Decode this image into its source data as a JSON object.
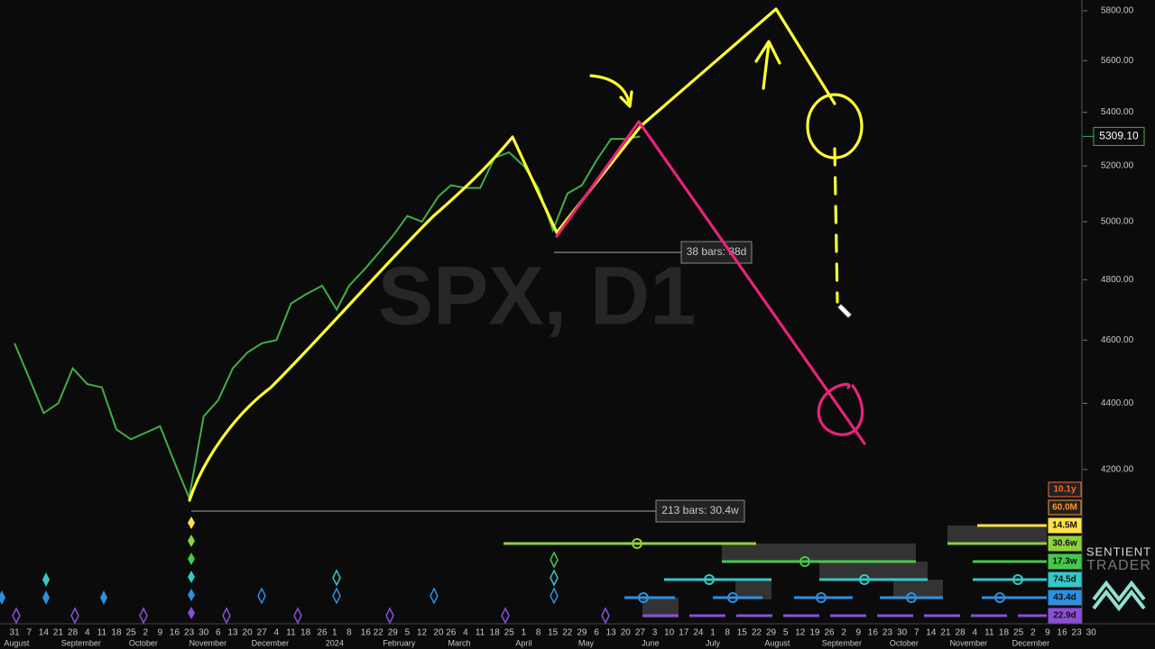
{
  "chart_data": {
    "type": "line",
    "watermark": "SPX, D1",
    "color": "#3fae49",
    "log_scale": true,
    "x": [
      "2023-07-31",
      "2023-08-07",
      "2023-08-14",
      "2023-08-21",
      "2023-08-28",
      "2023-09-04",
      "2023-09-11",
      "2023-09-18",
      "2023-09-25",
      "2023-10-02",
      "2023-10-09",
      "2023-10-16",
      "2023-10-23",
      "2023-10-30",
      "2023-11-06",
      "2023-11-13",
      "2023-11-20",
      "2023-11-27",
      "2023-12-04",
      "2023-12-11",
      "2023-12-18",
      "2023-12-26",
      "2024-01-02",
      "2024-01-08",
      "2024-01-16",
      "2024-01-22",
      "2024-01-29",
      "2024-02-05",
      "2024-02-12",
      "2024-02-20",
      "2024-02-26",
      "2024-03-04",
      "2024-03-11",
      "2024-03-18",
      "2024-03-25",
      "2024-04-01",
      "2024-04-08",
      "2024-04-15",
      "2024-04-22",
      "2024-04-29",
      "2024-05-06",
      "2024-05-13",
      "2024-05-20",
      "2024-05-27"
    ],
    "values": [
      4590,
      4480,
      4370,
      4400,
      4510,
      4460,
      4450,
      4320,
      4290,
      4310,
      4330,
      4220,
      4117,
      4360,
      4410,
      4510,
      4560,
      4590,
      4600,
      4720,
      4750,
      4780,
      4700,
      4780,
      4840,
      4890,
      4950,
      5020,
      5000,
      5090,
      5130,
      5120,
      5120,
      5230,
      5250,
      5200,
      5120,
      4970,
      5100,
      5130,
      5220,
      5300,
      5300,
      5309
    ],
    "xlim": [
      "2023-07-24",
      "2024-12-26"
    ],
    "ylim": [
      3768,
      5844
    ],
    "yticks": [
      {
        "value": 4200,
        "label": "4200.00"
      },
      {
        "value": 4400,
        "label": "4400.00"
      },
      {
        "value": 4600,
        "label": "4600.00"
      },
      {
        "value": 4800,
        "label": "4800.00"
      },
      {
        "value": 5000,
        "label": "5000.00"
      },
      {
        "value": 5200,
        "label": "5200.00"
      },
      {
        "value": 5400,
        "label": "5400.00"
      },
      {
        "value": 5600,
        "label": "5600.00"
      },
      {
        "value": 5800,
        "label": "5800.00"
      }
    ],
    "last_price": {
      "value": 5309.1,
      "label": "5309.10"
    },
    "xticks": [
      {
        "value": "2023-07-31",
        "label": "31"
      },
      {
        "value": "2023-08-07",
        "label": "7"
      },
      {
        "value": "2023-08-14",
        "label": "14"
      },
      {
        "value": "2023-08-21",
        "label": "21"
      },
      {
        "value": "2023-08-28",
        "label": "28"
      },
      {
        "value": "2023-09-04",
        "label": "4"
      },
      {
        "value": "2023-09-11",
        "label": "11"
      },
      {
        "value": "2023-09-18",
        "label": "18"
      },
      {
        "value": "2023-09-25",
        "label": "25"
      },
      {
        "value": "2023-10-02",
        "label": "2"
      },
      {
        "value": "2023-10-09",
        "label": "9"
      },
      {
        "value": "2023-10-16",
        "label": "16"
      },
      {
        "value": "2023-10-23",
        "label": "23"
      },
      {
        "value": "2023-10-30",
        "label": "30"
      },
      {
        "value": "2023-11-06",
        "label": "6"
      },
      {
        "value": "2023-11-13",
        "label": "13"
      },
      {
        "value": "2023-11-20",
        "label": "20"
      },
      {
        "value": "2023-11-27",
        "label": "27"
      },
      {
        "value": "2023-12-04",
        "label": "4"
      },
      {
        "value": "2023-12-11",
        "label": "11"
      },
      {
        "value": "2023-12-18",
        "label": "18"
      },
      {
        "value": "2023-12-26",
        "label": "26"
      },
      {
        "value": "2024-01-01",
        "label": "1"
      },
      {
        "value": "2024-01-08",
        "label": "8"
      },
      {
        "value": "2024-01-16",
        "label": "16"
      },
      {
        "value": "2024-01-22",
        "label": "22"
      },
      {
        "value": "2024-01-29",
        "label": "29"
      },
      {
        "value": "2024-02-05",
        "label": "5"
      },
      {
        "value": "2024-02-12",
        "label": "12"
      },
      {
        "value": "2024-02-20",
        "label": "20"
      },
      {
        "value": "2024-02-26",
        "label": "26"
      },
      {
        "value": "2024-03-04",
        "label": "4"
      },
      {
        "value": "2024-03-11",
        "label": "11"
      },
      {
        "value": "2024-03-18",
        "label": "18"
      },
      {
        "value": "2024-03-25",
        "label": "25"
      },
      {
        "value": "2024-04-01",
        "label": "1"
      },
      {
        "value": "2024-04-08",
        "label": "8"
      },
      {
        "value": "2024-04-15",
        "label": "15"
      },
      {
        "value": "2024-04-22",
        "label": "22"
      },
      {
        "value": "2024-04-29",
        "label": "29"
      },
      {
        "value": "2024-05-06",
        "label": "6"
      },
      {
        "value": "2024-05-13",
        "label": "13"
      },
      {
        "value": "2024-05-20",
        "label": "20"
      },
      {
        "value": "2024-05-27",
        "label": "27"
      },
      {
        "value": "2024-06-03",
        "label": "3"
      },
      {
        "value": "2024-06-10",
        "label": "10"
      },
      {
        "value": "2024-06-17",
        "label": "17"
      },
      {
        "value": "2024-06-24",
        "label": "24"
      },
      {
        "value": "2024-07-01",
        "label": "1"
      },
      {
        "value": "2024-07-08",
        "label": "8"
      },
      {
        "value": "2024-07-15",
        "label": "15"
      },
      {
        "value": "2024-07-22",
        "label": "22"
      },
      {
        "value": "2024-07-29",
        "label": "29"
      },
      {
        "value": "2024-08-05",
        "label": "5"
      },
      {
        "value": "2024-08-12",
        "label": "12"
      },
      {
        "value": "2024-08-19",
        "label": "19"
      },
      {
        "value": "2024-08-26",
        "label": "26"
      },
      {
        "value": "2024-09-02",
        "label": "2"
      },
      {
        "value": "2024-09-09",
        "label": "9"
      },
      {
        "value": "2024-09-16",
        "label": "16"
      },
      {
        "value": "2024-09-23",
        "label": "23"
      },
      {
        "value": "2024-09-30",
        "label": "30"
      },
      {
        "value": "2024-10-07",
        "label": "7"
      },
      {
        "value": "2024-10-14",
        "label": "14"
      },
      {
        "value": "2024-10-21",
        "label": "21"
      },
      {
        "value": "2024-10-28",
        "label": "28"
      },
      {
        "value": "2024-11-04",
        "label": "4"
      },
      {
        "value": "2024-11-11",
        "label": "11"
      },
      {
        "value": "2024-11-18",
        "label": "18"
      },
      {
        "value": "2024-11-25",
        "label": "25"
      },
      {
        "value": "2024-12-02",
        "label": "2"
      },
      {
        "value": "2024-12-09",
        "label": "9"
      },
      {
        "value": "2024-12-16",
        "label": "16"
      },
      {
        "value": "2024-12-23",
        "label": "23"
      },
      {
        "value": "2024-12-30",
        "label": "30"
      }
    ],
    "month_labels": [
      {
        "value": "2023-08-01",
        "label": "August"
      },
      {
        "value": "2023-09-01",
        "label": "September"
      },
      {
        "value": "2023-10-01",
        "label": "October"
      },
      {
        "value": "2023-11-01",
        "label": "November"
      },
      {
        "value": "2023-12-01",
        "label": "December"
      },
      {
        "value": "2024-01-01",
        "label": "2024"
      },
      {
        "value": "2024-02-01",
        "label": "February"
      },
      {
        "value": "2024-03-01",
        "label": "March"
      },
      {
        "value": "2024-04-01",
        "label": "April"
      },
      {
        "value": "2024-05-01",
        "label": "May"
      },
      {
        "value": "2024-06-01",
        "label": "June"
      },
      {
        "value": "2024-07-01",
        "label": "July"
      },
      {
        "value": "2024-08-01",
        "label": "August"
      },
      {
        "value": "2024-09-01",
        "label": "September"
      },
      {
        "value": "2024-10-01",
        "label": "October"
      },
      {
        "value": "2024-11-01",
        "label": "November"
      },
      {
        "value": "2024-12-01",
        "label": "December"
      }
    ],
    "annotations": [
      "38 bars: 38d",
      "213 bars: 30.4w"
    ],
    "cycles": [
      {
        "label": "10.1y",
        "color": "#ff6a2a"
      },
      {
        "label": "60.0M",
        "color": "#ff9a2a"
      },
      {
        "label": "14.5M",
        "color": "#ffe14a"
      },
      {
        "label": "30.6w",
        "color": "#8ed13b"
      },
      {
        "label": "17.3w",
        "color": "#45c94a"
      },
      {
        "label": "74.5d",
        "color": "#37c7c7"
      },
      {
        "label": "43.4d",
        "color": "#2e8fe0"
      },
      {
        "label": "22.9d",
        "color": "#8a4fd8"
      }
    ],
    "logo": [
      "SENTIENT",
      "TRADER"
    ]
  }
}
